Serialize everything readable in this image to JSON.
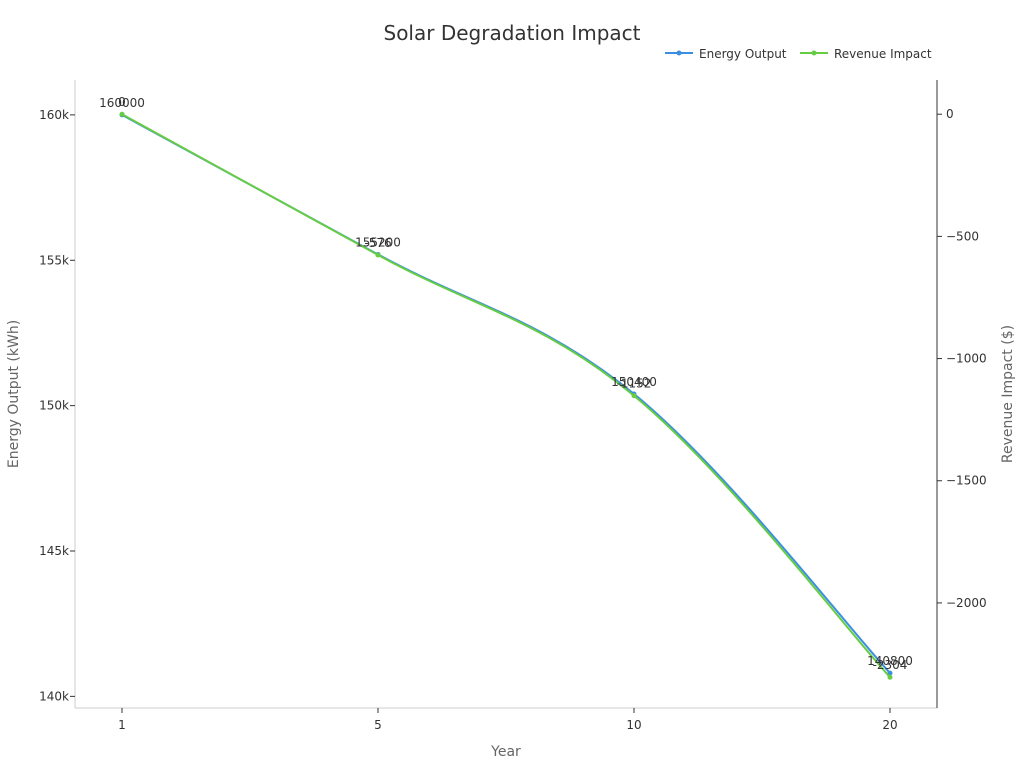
{
  "chart_data": {
    "type": "line",
    "title": "Solar Degradation Impact",
    "xlabel": "Year",
    "ylabel_left": "Energy Output (kWh)",
    "ylabel_right": "Revenue Impact ($)",
    "categories": [
      "1",
      "5",
      "10",
      "20"
    ],
    "y_left": {
      "lim": [
        139600,
        161200
      ],
      "ticks": [
        140000,
        145000,
        150000,
        155000,
        160000
      ],
      "tick_labels": [
        "140k",
        "145k",
        "150k",
        "155k",
        "160k"
      ]
    },
    "y_right": {
      "lim": [
        -2430,
        140
      ],
      "ticks": [
        0,
        -500,
        -1000,
        -1500,
        -2000
      ],
      "tick_labels": [
        "0",
        "−500",
        "−1000",
        "−1500",
        "−2000"
      ]
    },
    "series": [
      {
        "name": "Energy Output",
        "axis": "left",
        "color": "#3b8fe0",
        "values": [
          160000,
          155200,
          150400,
          140800
        ],
        "labels": [
          "160000",
          "155200",
          "150400",
          "140800"
        ]
      },
      {
        "name": "Revenue Impact",
        "axis": "right",
        "color": "#66cc44",
        "values": [
          0,
          -576,
          -1152,
          -2304
        ],
        "labels": [
          "0",
          "-576",
          "-1152",
          "-2304"
        ]
      }
    ],
    "grid": false,
    "legend_position": "top-right"
  }
}
